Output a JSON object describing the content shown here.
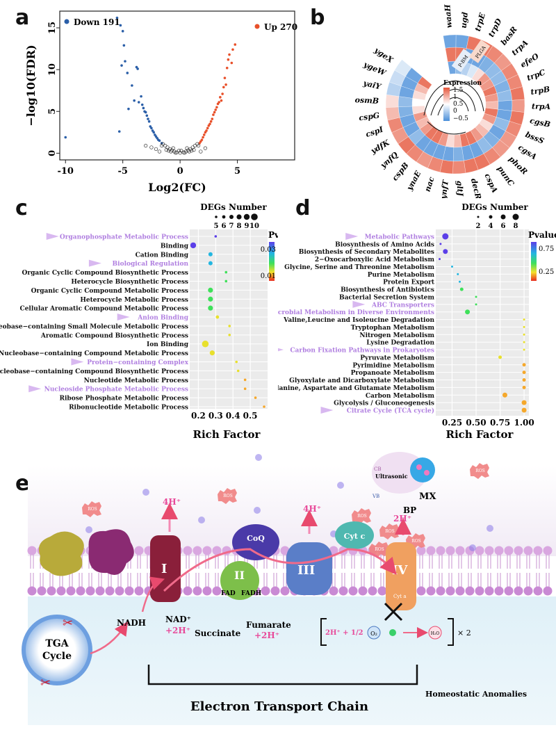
{
  "panels": {
    "a": "a",
    "b": "b",
    "c": "c",
    "d": "d",
    "e": "e"
  },
  "volcano": {
    "chart_data": {
      "type": "scatter",
      "title": "",
      "xlabel": "Log2(FC)",
      "ylabel": "−log10(FDR)",
      "xlim": [
        -10.5,
        10
      ],
      "ylim": [
        -0.8,
        17
      ],
      "xticks": [
        "-10",
        "-5",
        "0",
        "5"
      ],
      "yticks": [
        "0",
        "5",
        "10",
        "15"
      ],
      "legend": [
        {
          "name": "Down 191",
          "color": "#2b5fa8"
        },
        {
          "name": "Up 270",
          "color": "#e8502a"
        }
      ],
      "series": [
        {
          "name": "Down",
          "color": "#2b5fa8",
          "points": [
            [
              -10,
              1.9
            ],
            [
              -5.5,
              16.2
            ],
            [
              -5.2,
              15.3
            ],
            [
              -5.0,
              14.6
            ],
            [
              -4.9,
              12.9
            ],
            [
              -4.8,
              11.0
            ],
            [
              -5.1,
              10.5
            ],
            [
              -4.6,
              9.6
            ],
            [
              -4.2,
              8.1
            ],
            [
              -3.8,
              10.3
            ],
            [
              -3.7,
              10.1
            ],
            [
              -4.5,
              5.3
            ],
            [
              -3.6,
              6.1
            ],
            [
              -3.2,
              5.4
            ],
            [
              -2.9,
              4.5
            ],
            [
              -3.4,
              6.8
            ],
            [
              -2.6,
              3.2
            ],
            [
              -2.4,
              2.7
            ],
            [
              -2.2,
              2.2
            ],
            [
              -2.0,
              1.8
            ],
            [
              -1.8,
              1.5
            ],
            [
              -1.6,
              1.2
            ],
            [
              -2.7,
              3.8
            ],
            [
              -3.0,
              4.9
            ],
            [
              -2.5,
              3.0
            ],
            [
              -2.3,
              2.5
            ],
            [
              -2.8,
              4.1
            ],
            [
              -3.1,
              5.0
            ],
            [
              -3.3,
              5.8
            ],
            [
              -1.9,
              1.6
            ],
            [
              -2.1,
              2.0
            ],
            [
              -4.0,
              6.3
            ],
            [
              -5.3,
              2.6
            ]
          ]
        },
        {
          "name": "Up",
          "color": "#e8502a",
          "points": [
            [
              4.8,
              13.0
            ],
            [
              4.6,
              12.4
            ],
            [
              4.3,
              11.8
            ],
            [
              4.5,
              10.8
            ],
            [
              4.1,
              10.2
            ],
            [
              4.0,
              8.2
            ],
            [
              3.8,
              7.9
            ],
            [
              3.7,
              7.1
            ],
            [
              3.5,
              6.7
            ],
            [
              3.3,
              5.9
            ],
            [
              3.2,
              5.5
            ],
            [
              3.0,
              4.9
            ],
            [
              2.9,
              4.6
            ],
            [
              2.8,
              4.1
            ],
            [
              2.7,
              3.8
            ],
            [
              2.6,
              3.5
            ],
            [
              2.5,
              3.3
            ],
            [
              2.4,
              3.0
            ],
            [
              2.3,
              2.7
            ],
            [
              2.2,
              2.5
            ],
            [
              2.1,
              2.2
            ],
            [
              2.0,
              1.9
            ],
            [
              1.9,
              1.6
            ],
            [
              1.8,
              1.4
            ],
            [
              3.9,
              9.0
            ],
            [
              4.2,
              11.2
            ],
            [
              3.6,
              6.3
            ],
            [
              3.4,
              6.1
            ],
            [
              3.1,
              5.2
            ],
            [
              1.7,
              1.2
            ]
          ]
        },
        {
          "name": "NS",
          "color": "#333333",
          "points": [
            [
              -1.5,
              1.1
            ],
            [
              -1.3,
              0.9
            ],
            [
              -1.1,
              0.7
            ],
            [
              -0.9,
              0.5
            ],
            [
              -0.7,
              0.35
            ],
            [
              -0.5,
              0.2
            ],
            [
              -0.3,
              0.1
            ],
            [
              0,
              0.05
            ],
            [
              0.3,
              0.1
            ],
            [
              0.5,
              0.2
            ],
            [
              0.7,
              0.35
            ],
            [
              0.9,
              0.5
            ],
            [
              1.1,
              0.7
            ],
            [
              1.3,
              0.9
            ],
            [
              1.5,
              1.1
            ],
            [
              -1.2,
              0.4
            ],
            [
              -0.8,
              0.2
            ],
            [
              -0.4,
              0.05
            ],
            [
              0.4,
              0.05
            ],
            [
              0.8,
              0.2
            ],
            [
              1.2,
              0.4
            ],
            [
              1.6,
              0.9
            ],
            [
              -1.6,
              0.9
            ],
            [
              -1.0,
              0.3
            ],
            [
              1.0,
              0.3
            ],
            [
              -2.1,
              0.5
            ],
            [
              -2.5,
              0.7
            ],
            [
              -3.0,
              0.9
            ],
            [
              -1.8,
              0.2
            ],
            [
              1.8,
              0.2
            ],
            [
              2.2,
              0.6
            ],
            [
              0.1,
              0.3
            ],
            [
              -0.1,
              0.3
            ],
            [
              -0.6,
              0.6
            ],
            [
              0.6,
              0.6
            ]
          ]
        }
      ]
    }
  },
  "heatmap": {
    "genes": [
      "waaH",
      "ugd",
      "trpE",
      "trpD",
      "basR",
      "trpA",
      "efeO",
      "trpC",
      "trpB",
      "trpA",
      "cgsB",
      "bssS",
      "cgsA",
      "phoR",
      "punC",
      "cspA",
      "decR",
      "gltJ",
      "ynfT",
      "nac",
      "ynaE",
      "cspB",
      "ynfQ",
      "ydfK",
      "cspI",
      "cspG",
      "osmB",
      "yaiY",
      "ygeW",
      "ygeX"
    ],
    "rings": [
      "P-BM",
      "PLGA"
    ],
    "legend_title": "Expression",
    "legend_ticks": [
      "1.5",
      "1",
      "0.5",
      "0",
      "−0.5"
    ]
  },
  "go_enrichment": {
    "chart_data": {
      "type": "scatter",
      "xlabel": "Rich Factor",
      "xticks": [
        "0.2",
        "0.3",
        "0.4",
        "0.5"
      ],
      "xlim": [
        0.15,
        0.6
      ],
      "size_legend_title": "DEGs Number",
      "size_legend": [
        "5",
        "6",
        "7",
        "8",
        "9",
        "10"
      ],
      "color_legend_title": "Pvalue",
      "color_ticks": [
        "0.03",
        "0.01"
      ],
      "terms": [
        {
          "label": "Organophosphate Metabolic Process",
          "rich": 0.3,
          "count": 5,
          "p": 0.035,
          "highlight": true
        },
        {
          "label": "Binding",
          "rich": 0.17,
          "count": 9,
          "p": 0.034,
          "highlight": false
        },
        {
          "label": "Cation Binding",
          "rich": 0.27,
          "count": 7,
          "p": 0.026,
          "highlight": false
        },
        {
          "label": "Biological Regulation",
          "rich": 0.27,
          "count": 7,
          "p": 0.025,
          "highlight": true
        },
        {
          "label": "Organic Cyclic Compound Biosynthetic Process",
          "rich": 0.36,
          "count": 5,
          "p": 0.02,
          "highlight": false
        },
        {
          "label": "Heterocycle Biosynthetic Process",
          "rich": 0.36,
          "count": 5,
          "p": 0.02,
          "highlight": false
        },
        {
          "label": "Organic Cyclic Compound Metabolic Process",
          "rich": 0.27,
          "count": 8,
          "p": 0.019,
          "highlight": false
        },
        {
          "label": "Heterocycle Metabolic Process",
          "rich": 0.27,
          "count": 8,
          "p": 0.019,
          "highlight": false
        },
        {
          "label": "Cellular Aromatic Compound Metabolic Process",
          "rich": 0.27,
          "count": 8,
          "p": 0.019,
          "highlight": false
        },
        {
          "label": "Anion Binding",
          "rich": 0.31,
          "count": 6,
          "p": 0.017,
          "highlight": true
        },
        {
          "label": "Nucleobase−containing Small Molecule Metabolic Process",
          "rich": 0.38,
          "count": 5,
          "p": 0.016,
          "highlight": false
        },
        {
          "label": "Aromatic Compound Biosynthetic Process",
          "rich": 0.38,
          "count": 5,
          "p": 0.016,
          "highlight": false
        },
        {
          "label": "Ion Binding",
          "rich": 0.24,
          "count": 10,
          "p": 0.016,
          "highlight": false
        },
        {
          "label": "Nucleobase−containing Compound Metabolic Process",
          "rich": 0.28,
          "count": 8,
          "p": 0.014,
          "highlight": false
        },
        {
          "label": "Protein−containing Complex",
          "rich": 0.42,
          "count": 5,
          "p": 0.013,
          "highlight": true
        },
        {
          "label": "Nucleobase−containing Compound Biosynthetic Process",
          "rich": 0.43,
          "count": 5,
          "p": 0.012,
          "highlight": false
        },
        {
          "label": "Nucleotide Metabolic Process",
          "rich": 0.47,
          "count": 5,
          "p": 0.011,
          "highlight": false
        },
        {
          "label": "Nucleoside Phosphate Metabolic Process",
          "rich": 0.47,
          "count": 5,
          "p": 0.011,
          "highlight": true
        },
        {
          "label": "Ribose Phosphate Metabolic Process",
          "rich": 0.53,
          "count": 5,
          "p": 0.009,
          "highlight": false
        },
        {
          "label": "Ribonucleotide Metabolic Process",
          "rich": 0.58,
          "count": 5,
          "p": 0.006,
          "highlight": false
        }
      ]
    }
  },
  "kegg_enrichment": {
    "chart_data": {
      "type": "scatter",
      "xlabel": "Rich Factor",
      "xticks": [
        "0.25",
        "0.50",
        "0.75",
        "1.00"
      ],
      "xlim": [
        0.08,
        1.05
      ],
      "size_legend_title": "DEGs Number",
      "size_legend": [
        "2",
        "4",
        "6",
        "8"
      ],
      "color_legend_title": "Pvalue",
      "color_ticks": [
        "0.75",
        "0.25"
      ],
      "terms": [
        {
          "label": "Metabolic Pathways",
          "rich": 0.18,
          "count": 8,
          "p": 0.85,
          "highlight": true
        },
        {
          "label": "Biosynthesis of Amino Acids",
          "rich": 0.13,
          "count": 2,
          "p": 0.82,
          "highlight": false
        },
        {
          "label": "Biosynthesis of Secondary Metabolites",
          "rich": 0.18,
          "count": 6,
          "p": 0.82,
          "highlight": false
        },
        {
          "label": "2−Oxocarboxylic Acid Metabolism",
          "rich": 0.12,
          "count": 2,
          "p": 0.78,
          "highlight": false
        },
        {
          "label": "Glycine, Serine and Threonine Metabolism",
          "rich": 0.25,
          "count": 2,
          "p": 0.68,
          "highlight": false
        },
        {
          "label": "Purine Metabolism",
          "rich": 0.31,
          "count": 2,
          "p": 0.58,
          "highlight": false
        },
        {
          "label": "Protein Export",
          "rich": 0.33,
          "count": 2,
          "p": 0.55,
          "highlight": false
        },
        {
          "label": "Biosynthesis of Antibiotics",
          "rich": 0.35,
          "count": 4,
          "p": 0.52,
          "highlight": false
        },
        {
          "label": "Bacterial Secretion System",
          "rich": 0.5,
          "count": 2,
          "p": 0.5,
          "highlight": false
        },
        {
          "label": "ABC Transporters",
          "rich": 0.5,
          "count": 2,
          "p": 0.48,
          "highlight": true
        },
        {
          "label": "Microbial Metabolism in Diverse Environments",
          "rich": 0.41,
          "count": 6,
          "p": 0.45,
          "highlight": true
        },
        {
          "label": "Valine,Leucine and Isoleucine Degradation",
          "rich": 1.0,
          "count": 2,
          "p": 0.38,
          "highlight": false
        },
        {
          "label": "Tryptophan Metabolism",
          "rich": 1.0,
          "count": 2,
          "p": 0.37,
          "highlight": false
        },
        {
          "label": "Nitrogen Metabolism",
          "rich": 1.0,
          "count": 2,
          "p": 0.36,
          "highlight": false
        },
        {
          "label": "Lysine Degradation",
          "rich": 1.0,
          "count": 2,
          "p": 0.35,
          "highlight": false
        },
        {
          "label": "Carbon Fixation Pathways in Prokaryotes",
          "rich": 1.0,
          "count": 2,
          "p": 0.33,
          "highlight": true
        },
        {
          "label": "Pyruvate Metabolism",
          "rich": 0.75,
          "count": 4,
          "p": 0.28,
          "highlight": false
        },
        {
          "label": "Pyrimidine Metabolism",
          "rich": 1.0,
          "count": 4,
          "p": 0.22,
          "highlight": false
        },
        {
          "label": "Propanoate Metabolism",
          "rich": 1.0,
          "count": 4,
          "p": 0.21,
          "highlight": false
        },
        {
          "label": "Glyoxylate and Dicarboxylate Metabolism",
          "rich": 1.0,
          "count": 4,
          "p": 0.2,
          "highlight": false
        },
        {
          "label": "Alanine, Aspartate and Glutamate Metabolism",
          "rich": 1.0,
          "count": 4,
          "p": 0.19,
          "highlight": false
        },
        {
          "label": "Carbon Metabolism",
          "rich": 0.8,
          "count": 6,
          "p": 0.17,
          "highlight": false
        },
        {
          "label": "Glycolysis / Gluconeogenesis",
          "rich": 1.0,
          "count": 6,
          "p": 0.12,
          "highlight": false
        },
        {
          "label": "Citrate Cycle (TCA cycle)",
          "rich": 1.0,
          "count": 6,
          "p": 0.05,
          "highlight": true
        }
      ]
    }
  },
  "schematic": {
    "title": "Electron Transport Chain",
    "tga": "TGA",
    "cycle": "Cycle",
    "nadh": "NADH",
    "nadplus": "NAD⁺",
    "twoh": "+2H⁺",
    "succinate": "Succinate",
    "fumarate": "Fumarate",
    "complex1": "I",
    "complex2": "II",
    "complex3": "III",
    "complex4": "IV",
    "coq": "CoQ",
    "cytc": "Cyt c",
    "fourh1": "4H⁺",
    "fourh2": "4H⁺",
    "twohout": "2H⁺",
    "fad": "FAD",
    "fadh": "FADH",
    "cyta": "Cyt a",
    "ros": "ROS",
    "mx": "MX",
    "bp": "BP",
    "cb": "CB",
    "vb": "VB",
    "ultrasonic": "Ultrasonic",
    "eq_left": "2H⁺ + 1/2",
    "o2": "O₂",
    "h2o": "H₂O",
    "times2": "× 2",
    "homeostatic": "Homeostatic Anomalies"
  }
}
